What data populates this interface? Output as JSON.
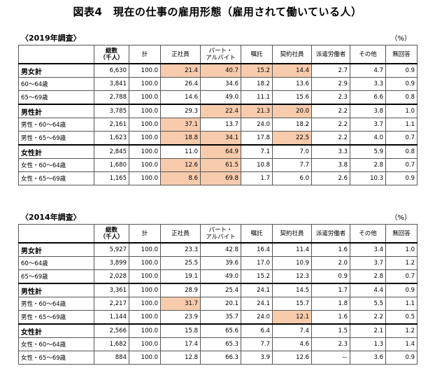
{
  "title": "図表4　現在の仕事の雇用形態（雇用されて働いている人）",
  "unit": "（%）",
  "columns": {
    "count": "総数\n（千人）",
    "total": "計",
    "regular": "正社員",
    "parttime": "パート・\nアルバイト",
    "shokutaku": "嘱託",
    "contract": "契約社員",
    "dispatch": "派遣労働者",
    "other": "その他",
    "noanswer": "無回答"
  },
  "sections": [
    {
      "label": "〈2019年調査〉",
      "rows": [
        {
          "label": "男女計",
          "group": true,
          "values": [
            "6,630",
            "100.0",
            "21.4",
            "40.7",
            "15.2",
            "14.4",
            "2.7",
            "4.7",
            "0.9"
          ],
          "highlight": [
            2,
            3,
            4,
            5
          ]
        },
        {
          "label": "60～64歳",
          "group": false,
          "values": [
            "3,841",
            "100.0",
            "26.4",
            "34.6",
            "18.2",
            "13.6",
            "2.9",
            "3.3",
            "0.9"
          ],
          "highlight": []
        },
        {
          "label": "65～69歳",
          "group": false,
          "values": [
            "2,788",
            "100.0",
            "14.6",
            "49.0",
            "11.1",
            "15.6",
            "2.3",
            "6.6",
            "0.8"
          ],
          "highlight": []
        },
        {
          "label": "男性計",
          "group": true,
          "values": [
            "3,785",
            "100.0",
            "29.3",
            "22.4",
            "21.3",
            "20.0",
            "2.2",
            "3.8",
            "1.0"
          ],
          "highlight": [
            3,
            4,
            5
          ]
        },
        {
          "label": "男性・60～64歳",
          "group": false,
          "values": [
            "2,161",
            "100.0",
            "37.1",
            "13.7",
            "24.0",
            "18.2",
            "2.2",
            "3.7",
            "1.1"
          ],
          "highlight": [
            2
          ]
        },
        {
          "label": "男性・65～69歳",
          "group": false,
          "values": [
            "1,623",
            "100.0",
            "18.8",
            "34.1",
            "17.8",
            "22.5",
            "2.2",
            "4.0",
            "0.7"
          ],
          "highlight": [
            2,
            3,
            5
          ]
        },
        {
          "label": "女性計",
          "group": true,
          "values": [
            "2,845",
            "100.0",
            "11.0",
            "64.9",
            "7.1",
            "7.0",
            "3.3",
            "5.9",
            "0.8"
          ],
          "highlight": [
            3
          ]
        },
        {
          "label": "女性・60～64歳",
          "group": false,
          "values": [
            "1,680",
            "100.0",
            "12.6",
            "61.5",
            "10.8",
            "7.7",
            "3.8",
            "2.8",
            "0.7"
          ],
          "highlight": [
            2,
            3
          ]
        },
        {
          "label": "女性・65～69歳",
          "group": false,
          "values": [
            "1,165",
            "100.0",
            "8.6",
            "69.8",
            "1.7",
            "6.0",
            "2.6",
            "10.3",
            "0.9"
          ],
          "highlight": [
            2,
            3
          ]
        }
      ]
    },
    {
      "label": "〈2014年調査〉",
      "rows": [
        {
          "label": "男女計",
          "group": true,
          "values": [
            "5,927",
            "100.0",
            "23.3",
            "42.8",
            "16.4",
            "11.4",
            "1.6",
            "3.4",
            "1.0"
          ],
          "highlight": []
        },
        {
          "label": "60～64歳",
          "group": false,
          "values": [
            "3,899",
            "100.0",
            "25.5",
            "39.6",
            "17.0",
            "10.9",
            "2.0",
            "3.7",
            "1.2"
          ],
          "highlight": []
        },
        {
          "label": "65～69歳",
          "group": false,
          "values": [
            "2,028",
            "100.0",
            "19.1",
            "49.0",
            "15.2",
            "12.3",
            "0.9",
            "2.8",
            "0.7"
          ],
          "highlight": []
        },
        {
          "label": "男性計",
          "group": true,
          "values": [
            "3,361",
            "100.0",
            "28.9",
            "25.4",
            "24.1",
            "14.5",
            "1.7",
            "4.4",
            "0.9"
          ],
          "highlight": []
        },
        {
          "label": "男性・60～64歳",
          "group": false,
          "values": [
            "2,217",
            "100.0",
            "31.7",
            "20.1",
            "24.1",
            "15.7",
            "1.8",
            "5.5",
            "1.1"
          ],
          "highlight": [
            2
          ]
        },
        {
          "label": "男性・65～69歳",
          "group": false,
          "values": [
            "1,144",
            "100.0",
            "23.9",
            "35.7",
            "24.0",
            "12.1",
            "1.6",
            "2.2",
            "0.5"
          ],
          "highlight": [
            5
          ]
        },
        {
          "label": "女性計",
          "group": true,
          "values": [
            "2,566",
            "100.0",
            "15.8",
            "65.6",
            "6.4",
            "7.4",
            "1.5",
            "2.1",
            "1.2"
          ],
          "highlight": []
        },
        {
          "label": "女性・60～64歳",
          "group": false,
          "values": [
            "1,682",
            "100.0",
            "17.4",
            "65.3",
            "7.7",
            "4.6",
            "2.3",
            "1.3",
            "1.4"
          ],
          "highlight": []
        },
        {
          "label": "女性・65～69歳",
          "group": false,
          "values": [
            "884",
            "100.0",
            "12.8",
            "66.3",
            "3.9",
            "12.6",
            "－",
            "3.6",
            "0.9"
          ],
          "highlight": []
        }
      ]
    }
  ],
  "colors": {
    "highlight": "#f8cbad"
  }
}
